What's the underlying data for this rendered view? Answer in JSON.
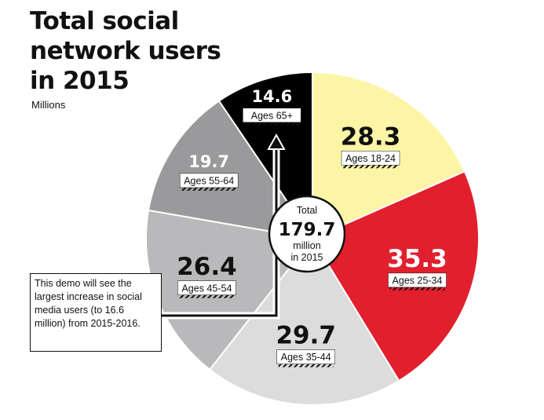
{
  "title_lines": [
    "Total social",
    "network users",
    "in 2015"
  ],
  "subtitle": "Millions",
  "callout_text": "This demo will see the largest increase in social media users (to 16.6 million) from 2015-2016.",
  "center": {
    "top": "Total",
    "value": "179.7",
    "bottom_1": "million",
    "bottom_2": "in 2015"
  },
  "colors": {
    "ages_18_24": "#fdf5a6",
    "ages_25_34": "#e21f2d",
    "ages_35_44": "#dcdcdc",
    "ages_45_54": "#b9b9bb",
    "ages_55_64": "#9a9a9c",
    "ages_65_plus": "#000000"
  },
  "chart_data": {
    "type": "pie",
    "title": "Total social network users in 2015",
    "unit": "Millions",
    "total": 179.7,
    "categories": [
      "Ages 18-24",
      "Ages 25-34",
      "Ages 35-44",
      "Ages 45-54",
      "Ages 55-64",
      "Ages 65+"
    ],
    "values": [
      28.3,
      35.3,
      29.7,
      26.4,
      19.7,
      14.6
    ],
    "value_labels": [
      "28.3",
      "35.3",
      "29.7",
      "26.4",
      "19.7",
      "14.6"
    ]
  }
}
